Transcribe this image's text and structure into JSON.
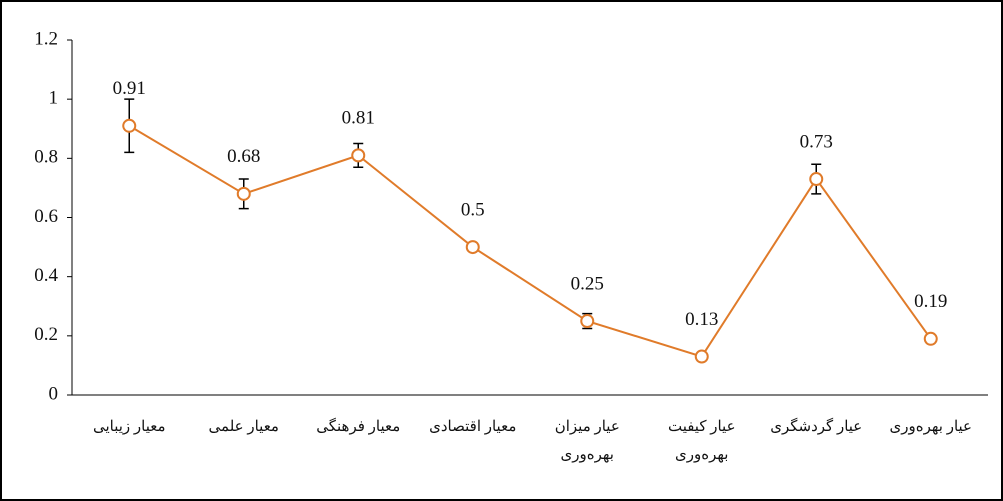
{
  "chart_data": {
    "type": "line",
    "categories": [
      "معیار زیبایی",
      "معیار علمی",
      "معیار فرهنگی",
      "معیار اقتصادی",
      "عیار میزان بهره‌وری",
      "عیار کیفیت بهره‌وری",
      "عیار گردشگری",
      "عیار بهره‌وری"
    ],
    "series": [
      {
        "color": "#e07b2a",
        "values": [
          0.91,
          0.68,
          0.81,
          0.5,
          0.25,
          0.13,
          0.73,
          0.19
        ],
        "errors": [
          0.09,
          0.05,
          0.04,
          null,
          0.025,
          null,
          0.05,
          0.01
        ]
      }
    ],
    "ylim": [
      0,
      1.2
    ],
    "yticks": [
      0,
      0.2,
      0.4,
      0.6,
      0.8,
      1,
      1.2
    ],
    "grid": false
  }
}
